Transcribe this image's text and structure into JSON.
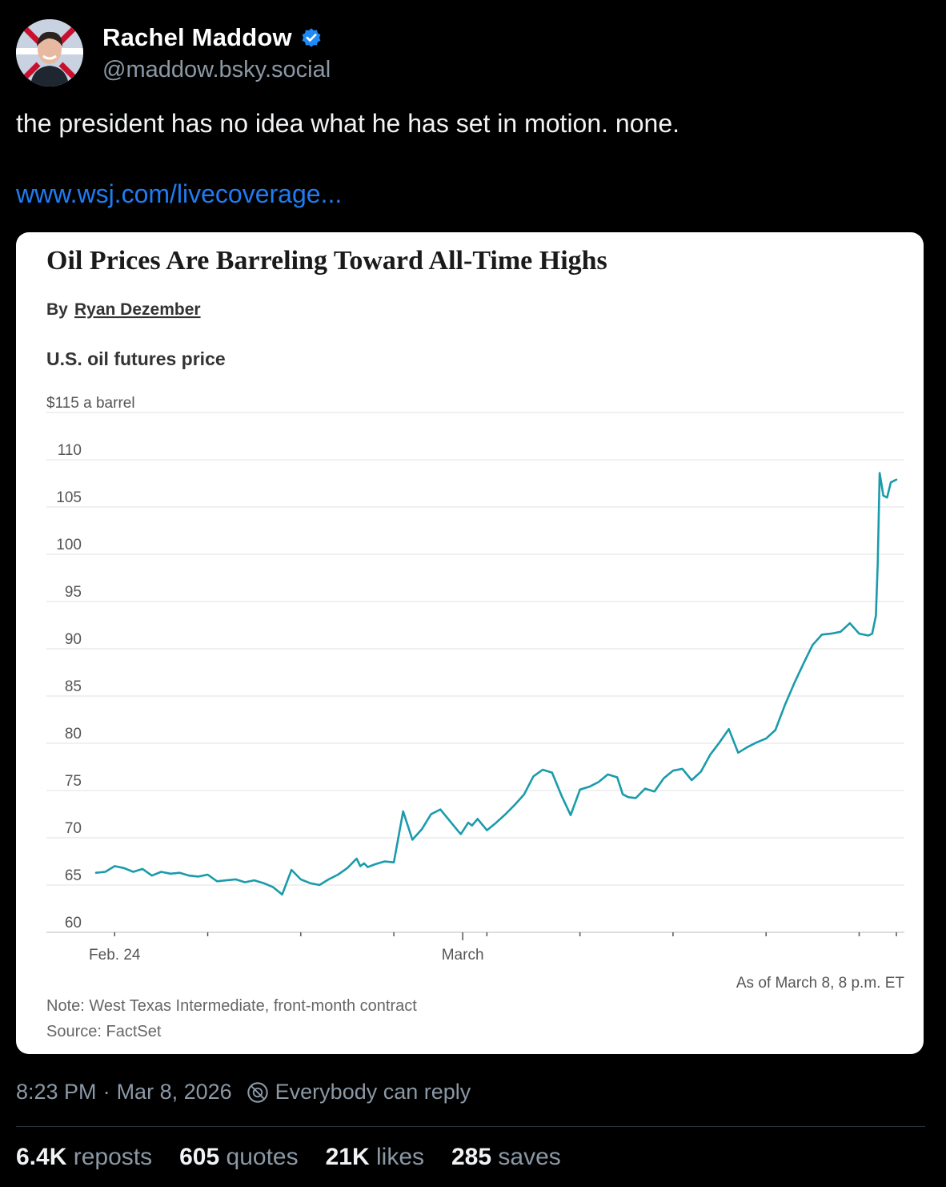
{
  "post": {
    "display_name": "Rachel Maddow",
    "handle": "@maddow.bsky.social",
    "text": "the president has no idea what he has set in motion. none.",
    "link_text": "www.wsj.com/livecoverage...",
    "time": "8:23 PM",
    "separator": "·",
    "date": "Mar 8, 2026",
    "reply_setting": "Everybody can reply",
    "icons": {
      "verified": "verified-check-icon",
      "reply": "reply-settings-icon",
      "avatar": "avatar"
    },
    "colors": {
      "background": "#000000",
      "link": "#1f7cf2",
      "verified": "#1d8af7",
      "muted": "#8b98a5"
    }
  },
  "stats": [
    {
      "count": "6.4K",
      "label": "reposts"
    },
    {
      "count": "605",
      "label": "quotes"
    },
    {
      "count": "21K",
      "label": "likes"
    },
    {
      "count": "285",
      "label": "saves"
    }
  ],
  "embed": {
    "headline": "Oil Prices Are Barreling Toward All-Time Highs",
    "byline_prefix": "By",
    "author": "Ryan Dezember",
    "note": "Note: West Texas Intermediate, front-month contract",
    "source": "Source: FactSet",
    "as_of": "As of March 8, 8 p.m. ET"
  },
  "chart_data": {
    "type": "line",
    "title": "U.S. oil futures price",
    "ylabel": "$115 a barrel",
    "ylim": [
      60,
      115
    ],
    "y_ticks": [
      "115",
      "110",
      "105",
      "100",
      "95",
      "90",
      "85",
      "80",
      "75",
      "70",
      "65",
      "60"
    ],
    "x_labels": [
      {
        "label": "Feb. 24",
        "x": 1
      },
      {
        "label": "March",
        "x": 19.7
      }
    ],
    "x_range": [
      0,
      43
    ],
    "x_ticks": [
      1,
      6,
      11,
      16,
      21,
      26,
      31,
      36,
      41,
      43
    ],
    "x_ticks_major": [
      19.7
    ],
    "line_color": "#1a9bab",
    "series": [
      {
        "name": "WTI front-month",
        "x": [
          0,
          0.5,
          1,
          1.5,
          2,
          2.5,
          3,
          3.5,
          4,
          4.5,
          5,
          5.5,
          6,
          6.5,
          7,
          7.5,
          8,
          8.5,
          9,
          9.5,
          10,
          10.5,
          11,
          11.5,
          12,
          12.5,
          13,
          13.5,
          14,
          14.2,
          14.4,
          14.6,
          15,
          15.5,
          16,
          16.5,
          17,
          17.5,
          18,
          18.5,
          19,
          19.5,
          19.6,
          19.8,
          20,
          20.2,
          20.5,
          21,
          21.5,
          22,
          22.5,
          23,
          23.5,
          24,
          24.5,
          25,
          25.5,
          26,
          26.5,
          27,
          27.5,
          28,
          28.3,
          28.6,
          29,
          29.5,
          30,
          30.5,
          31,
          31.5,
          32,
          32.5,
          33,
          33.5,
          34,
          34.5,
          35,
          35.5,
          36,
          36.5,
          37,
          37.5,
          38,
          38.5,
          39,
          39.5,
          40,
          40.5,
          41,
          41.5,
          41.7,
          41.9,
          42,
          42.1,
          42.3,
          42.5,
          42.7,
          43
        ],
        "values": [
          66.3,
          66.4,
          67.0,
          66.8,
          66.4,
          66.7,
          66.0,
          66.4,
          66.2,
          66.3,
          66.0,
          65.9,
          66.1,
          65.4,
          65.5,
          65.6,
          65.3,
          65.5,
          65.2,
          64.8,
          64.0,
          66.6,
          65.6,
          65.2,
          65.0,
          65.6,
          66.1,
          66.8,
          67.8,
          67.0,
          67.3,
          66.9,
          67.2,
          67.5,
          67.4,
          72.8,
          69.8,
          70.9,
          72.5,
          73.0,
          71.8,
          70.6,
          70.4,
          71.0,
          71.6,
          71.3,
          72.0,
          70.8,
          71.6,
          72.5,
          73.5,
          74.6,
          76.5,
          77.2,
          76.9,
          74.5,
          72.4,
          75.1,
          75.4,
          75.9,
          76.7,
          76.4,
          74.6,
          74.3,
          74.2,
          75.2,
          74.9,
          76.3,
          77.1,
          77.3,
          76.1,
          77.0,
          78.8,
          80.1,
          81.5,
          79.0,
          79.6,
          80.1,
          80.5,
          81.4,
          84.0,
          86.3,
          88.4,
          90.4,
          91.5,
          91.6,
          91.8,
          92.7,
          91.6,
          91.4,
          91.6,
          93.5,
          99.0,
          108.6,
          106.2,
          106.0,
          107.6,
          107.9
        ]
      }
    ]
  }
}
